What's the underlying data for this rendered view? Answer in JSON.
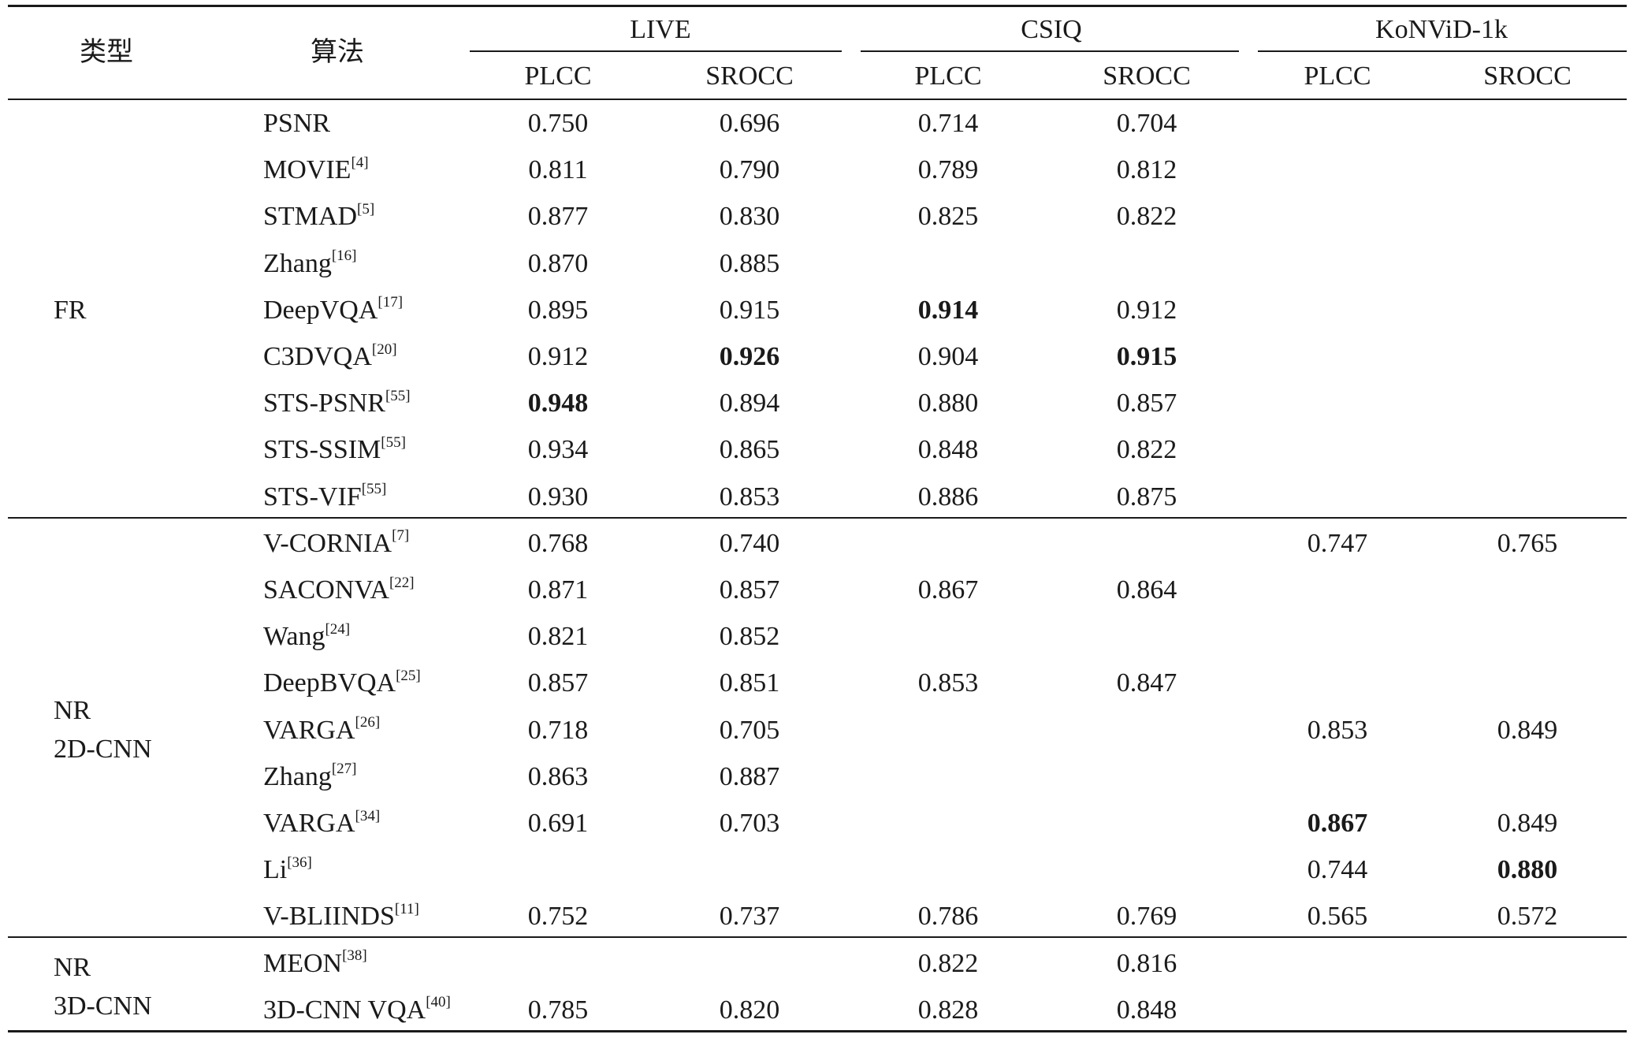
{
  "table": {
    "header": {
      "type_label": "类型",
      "algo_label": "算法",
      "datasets": [
        "LIVE",
        "CSIQ",
        "KoNViD-1k"
      ],
      "metrics": [
        "PLCC",
        "SROCC",
        "PLCC",
        "SROCC",
        "PLCC",
        "SROCC"
      ]
    },
    "groups": [
      {
        "label_lines": [
          "FR"
        ]
      },
      {
        "label_lines": [
          "NR",
          "2D-CNN"
        ]
      },
      {
        "label_lines": [
          "NR",
          "3D-CNN"
        ]
      }
    ],
    "rows": [
      {
        "group": 0,
        "name": "PSNR",
        "ref": "",
        "values": [
          "0.750",
          "0.696",
          "0.714",
          "0.704",
          "",
          ""
        ],
        "bold": []
      },
      {
        "group": 0,
        "name": "MOVIE",
        "ref": "[4]",
        "values": [
          "0.811",
          "0.790",
          "0.789",
          "0.812",
          "",
          ""
        ],
        "bold": []
      },
      {
        "group": 0,
        "name": "STMAD",
        "ref": "[5]",
        "values": [
          "0.877",
          "0.830",
          "0.825",
          "0.822",
          "",
          ""
        ],
        "bold": []
      },
      {
        "group": 0,
        "name": "Zhang",
        "ref": "[16]",
        "values": [
          "0.870",
          "0.885",
          "",
          "",
          "",
          ""
        ],
        "bold": []
      },
      {
        "group": 0,
        "name": "DeepVQA",
        "ref": "[17]",
        "values": [
          "0.895",
          "0.915",
          "0.914",
          "0.912",
          "",
          ""
        ],
        "bold": [
          2
        ]
      },
      {
        "group": 0,
        "name": "C3DVQA",
        "ref": "[20]",
        "values": [
          "0.912",
          "0.926",
          "0.904",
          "0.915",
          "",
          ""
        ],
        "bold": [
          1,
          3
        ]
      },
      {
        "group": 0,
        "name": "STS-PSNR",
        "ref": "[55]",
        "values": [
          "0.948",
          "0.894",
          "0.880",
          "0.857",
          "",
          ""
        ],
        "bold": [
          0
        ]
      },
      {
        "group": 0,
        "name": "STS-SSIM",
        "ref": "[55]",
        "values": [
          "0.934",
          "0.865",
          "0.848",
          "0.822",
          "",
          ""
        ],
        "bold": []
      },
      {
        "group": 0,
        "name": "STS-VIF",
        "ref": "[55]",
        "values": [
          "0.930",
          "0.853",
          "0.886",
          "0.875",
          "",
          ""
        ],
        "bold": []
      },
      {
        "group": 1,
        "name": "V-CORNIA",
        "ref": "[7]",
        "values": [
          "0.768",
          "0.740",
          "",
          "",
          "0.747",
          "0.765"
        ],
        "bold": []
      },
      {
        "group": 1,
        "name": "SACONVA",
        "ref": "[22]",
        "values": [
          "0.871",
          "0.857",
          "0.867",
          "0.864",
          "",
          ""
        ],
        "bold": []
      },
      {
        "group": 1,
        "name": "Wang",
        "ref": "[24]",
        "values": [
          "0.821",
          "0.852",
          "",
          "",
          "",
          ""
        ],
        "bold": []
      },
      {
        "group": 1,
        "name": "DeepBVQA",
        "ref": "[25]",
        "values": [
          "0.857",
          "0.851",
          "0.853",
          "0.847",
          "",
          ""
        ],
        "bold": []
      },
      {
        "group": 1,
        "name": "VARGA",
        "ref": "[26]",
        "values": [
          "0.718",
          "0.705",
          "",
          "",
          "0.853",
          "0.849"
        ],
        "bold": []
      },
      {
        "group": 1,
        "name": "Zhang",
        "ref": "[27]",
        "values": [
          "0.863",
          "0.887",
          "",
          "",
          "",
          ""
        ],
        "bold": []
      },
      {
        "group": 1,
        "name": "VARGA",
        "ref": "[34]",
        "values": [
          "0.691",
          "0.703",
          "",
          "",
          "0.867",
          "0.849"
        ],
        "bold": [
          4
        ]
      },
      {
        "group": 1,
        "name": "Li",
        "ref": "[36]",
        "values": [
          "",
          "",
          "",
          "",
          "0.744",
          "0.880"
        ],
        "bold": [
          5
        ]
      },
      {
        "group": 1,
        "name": "V-BLIINDS",
        "ref": "[11]",
        "values": [
          "0.752",
          "0.737",
          "0.786",
          "0.769",
          "0.565",
          "0.572"
        ],
        "bold": []
      },
      {
        "group": 2,
        "name": "MEON",
        "ref": "[38]",
        "values": [
          "",
          "",
          "0.822",
          "0.816",
          "",
          ""
        ],
        "bold": []
      },
      {
        "group": 2,
        "name": "3D-CNN VQA",
        "ref": "[40]",
        "values": [
          "0.785",
          "0.820",
          "0.828",
          "0.848",
          "",
          ""
        ],
        "bold": []
      }
    ]
  }
}
